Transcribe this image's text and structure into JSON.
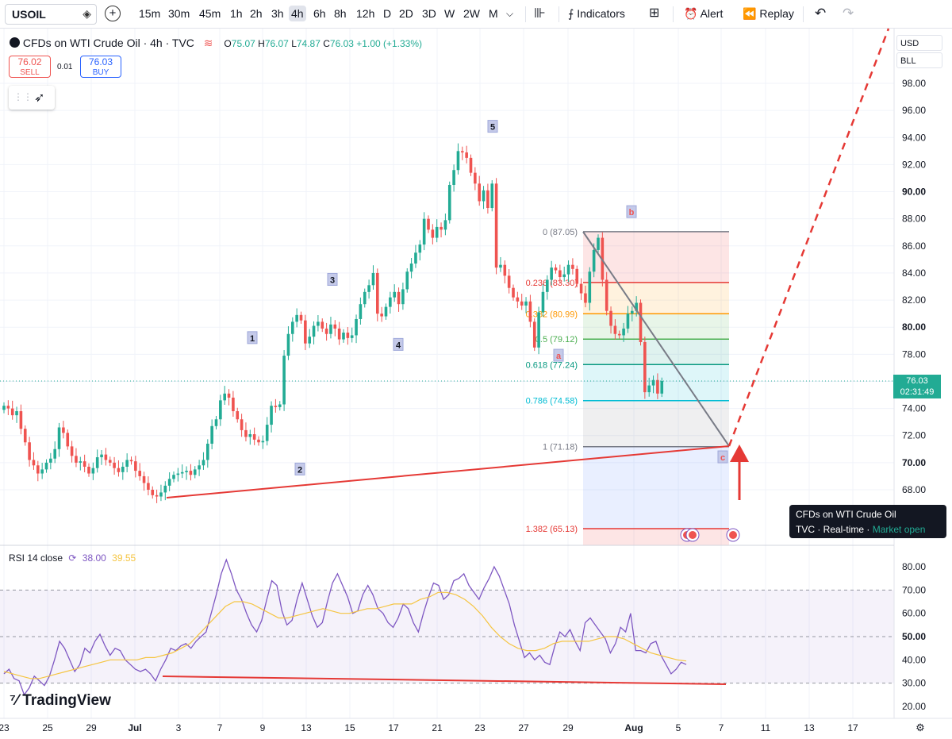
{
  "toolbar": {
    "symbol": "USOIL",
    "intervals": [
      "15m",
      "30m",
      "45m",
      "1h",
      "2h",
      "3h",
      "4h",
      "6h",
      "8h",
      "12h",
      "D",
      "2D",
      "3D",
      "W",
      "2W",
      "M"
    ],
    "active_interval": "4h",
    "indicators_label": "Indicators",
    "alert_label": "Alert",
    "replay_label": "Replay"
  },
  "legend": {
    "title": "CFDs on WTI Crude Oil · 4h · TVC",
    "open_label": "O",
    "open": "75.07",
    "high_label": "H",
    "high": "76.07",
    "low_label": "L",
    "low": "74.87",
    "close_label": "C",
    "close": "76.03",
    "change": "+1.00 (+1.33%)"
  },
  "trade": {
    "sell_price": "76.02",
    "sell_label": "SELL",
    "spread": "0.01",
    "buy_price": "76.03",
    "buy_label": "BUY"
  },
  "price_axis": {
    "currency": "USD",
    "unit": "BLL",
    "last_price": "76.03",
    "countdown": "02:31:49"
  },
  "tooltip": {
    "title": "CFDs on WTI Crude Oil",
    "source": "TVC",
    "mode": "Real-time",
    "status": "Market open"
  },
  "rsi": {
    "label": "RSI 14 close",
    "value": "38.00",
    "ma_value": "39.55"
  },
  "brand": "TradingView",
  "colors": {
    "up": "#22ab94",
    "down": "#ef5350",
    "rsi": "#7e57c2",
    "rsi_ma": "#f5c542",
    "trendline": "#e53935"
  },
  "chart_data": [
    {
      "type": "candlestick",
      "y_ticks": [
        "68.00",
        "70.00",
        "72.00",
        "74.00",
        "76.00",
        "78.00",
        "80.00",
        "82.00",
        "84.00",
        "86.00",
        "88.00",
        "90.00",
        "92.00",
        "94.00",
        "96.00",
        "98.00"
      ],
      "ylim": [
        66,
        100
      ],
      "x_tick_labels": [
        "23",
        "25",
        "29",
        "Jul",
        "3",
        "7",
        "9",
        "13",
        "15",
        "17",
        "21",
        "23",
        "27",
        "29",
        "Aug",
        "5",
        "7",
        "11",
        "13",
        "17"
      ],
      "close_trace": [
        74.2,
        74,
        73.5,
        73.8,
        72.5,
        71.5,
        70.2,
        69.8,
        69.2,
        69.5,
        70,
        70.3,
        71,
        72.6,
        72.2,
        71.2,
        70.5,
        70,
        70.1,
        69.7,
        69.2,
        69.6,
        70.4,
        70.6,
        70.2,
        70,
        69.6,
        69.3,
        69.7,
        70.2,
        70.1,
        69.4,
        69,
        68.5,
        68,
        67.6,
        67.5,
        67.8,
        68.3,
        68.8,
        69.1,
        69.2,
        69.3,
        69.4,
        69.1,
        69.5,
        69.8,
        70.2,
        71.4,
        72.7,
        73.2,
        74.6,
        75.1,
        74.8,
        73.8,
        73.2,
        72.4,
        71.9,
        72.1,
        71.7,
        71.5,
        71.6,
        72.8,
        74.2,
        74.1,
        74.3,
        77.9,
        79.5,
        80.4,
        80.9,
        80.5,
        78.8,
        79.3,
        80.1,
        80.4,
        79.9,
        79.5,
        80.2,
        79.9,
        79.1,
        79.6,
        79.2,
        79.4,
        80.6,
        81.7,
        82.6,
        83.1,
        84,
        81,
        80.8,
        81.5,
        82.2,
        82.6,
        81.7,
        82.8,
        84.1,
        84.7,
        85.5,
        86.1,
        88,
        87.2,
        86.6,
        87.4,
        87.2,
        87.9,
        90.5,
        91.6,
        93,
        92.9,
        92.5,
        91.4,
        90.6,
        89.3,
        90.1,
        88.8,
        90.6,
        84.4,
        84.6,
        83.8,
        82.9,
        82.2,
        81.9,
        81.6,
        81.9,
        80.4,
        78.5,
        81.1,
        82.6,
        83.5,
        84.4,
        84.2,
        83.7,
        83.9,
        84.6,
        84.3,
        83.2,
        82.5,
        81.8,
        84.1,
        85.7,
        86.6,
        83.5,
        81.2,
        80.1,
        79.5,
        79.4,
        79.9,
        81,
        81.2,
        81.8,
        78.9,
        75.2,
        75.7,
        76.1,
        75.1,
        76.03
      ],
      "wave_labels": [
        {
          "label": "1",
          "price": 79.2
        },
        {
          "label": "2",
          "price": 69.5
        },
        {
          "label": "3",
          "price": 83.5
        },
        {
          "label": "4",
          "price": 78.7
        },
        {
          "label": "5",
          "price": 94.8
        },
        {
          "label": "a",
          "price": 77.9
        },
        {
          "label": "b",
          "price": 88.5
        },
        {
          "label": "c",
          "price": 70.4
        }
      ],
      "fibonacci": [
        {
          "label": "0 (87.05)",
          "level": "0",
          "price": 87.05,
          "color": "#787b86"
        },
        {
          "label": "0.236 (83.30)",
          "level": "0.236",
          "price": 83.3,
          "color": "#e53935"
        },
        {
          "label": "0.382 (80.99)",
          "level": "0.382",
          "price": 80.99,
          "color": "#ff9800"
        },
        {
          "label": "0.5 (79.12)",
          "level": "0.5",
          "price": 79.12,
          "color": "#4caf50"
        },
        {
          "label": "0.618 (77.24)",
          "level": "0.618",
          "price": 77.24,
          "color": "#089981"
        },
        {
          "label": "0.786 (74.58)",
          "level": "0.786",
          "price": 74.58,
          "color": "#00bcd4"
        },
        {
          "label": "1 (71.18)",
          "level": "1",
          "price": 71.18,
          "color": "#787b86"
        },
        {
          "label": "1.382 (65.13)",
          "level": "1.382",
          "price": 65.13,
          "color": "#e53935"
        }
      ]
    },
    {
      "type": "line",
      "name": "RSI 14 close",
      "y_ticks": [
        "20.00",
        "30.00",
        "40.00",
        "50.00",
        "60.00",
        "70.00",
        "80.00"
      ],
      "ylim": [
        16,
        85
      ],
      "bands": [
        30,
        50,
        70
      ],
      "rsi_trace": [
        34,
        36,
        32,
        31,
        25,
        28,
        33,
        31,
        29,
        33,
        40,
        48,
        45,
        40,
        35,
        38,
        45,
        43,
        48,
        51,
        46,
        42,
        45,
        44,
        40,
        38,
        36,
        35,
        36,
        34,
        31,
        36,
        40,
        45,
        44,
        46,
        47,
        45,
        48,
        50,
        52,
        60,
        68,
        77,
        83,
        77,
        70,
        66,
        60,
        55,
        52,
        57,
        66,
        74,
        72,
        61,
        55,
        57,
        66,
        73,
        66,
        59,
        54,
        56,
        65,
        73,
        77,
        72,
        67,
        60,
        61,
        68,
        72,
        68,
        62,
        60,
        56,
        54,
        58,
        64,
        62,
        56,
        52,
        60,
        67,
        73,
        72,
        66,
        68,
        74,
        75,
        77,
        72,
        69,
        66,
        71,
        75,
        80,
        76,
        70,
        64,
        55,
        48,
        41,
        43,
        40,
        42,
        39,
        38,
        46,
        52,
        50,
        53,
        48,
        44,
        56,
        58,
        55,
        52,
        49,
        43,
        47,
        54,
        52,
        60,
        44,
        44,
        43,
        47,
        48,
        42,
        38,
        34,
        36,
        39,
        38.0
      ],
      "ma_trace": [
        35,
        34,
        33,
        32,
        32,
        33,
        34,
        35,
        36,
        37,
        38,
        39,
        40,
        40,
        40,
        40,
        41,
        41,
        42,
        43,
        45,
        47,
        51,
        55,
        59,
        63,
        65,
        65,
        64,
        62,
        60,
        58,
        58,
        59,
        60,
        61,
        62,
        61,
        60,
        60,
        61,
        62,
        62,
        63,
        64,
        64,
        64,
        66,
        67,
        69,
        69,
        68,
        66,
        63,
        59,
        54,
        50,
        47,
        45,
        44,
        44,
        45,
        47,
        48,
        48,
        48,
        48,
        49,
        50,
        50,
        49,
        47,
        45,
        43,
        42,
        41,
        40,
        39.55
      ]
    }
  ]
}
